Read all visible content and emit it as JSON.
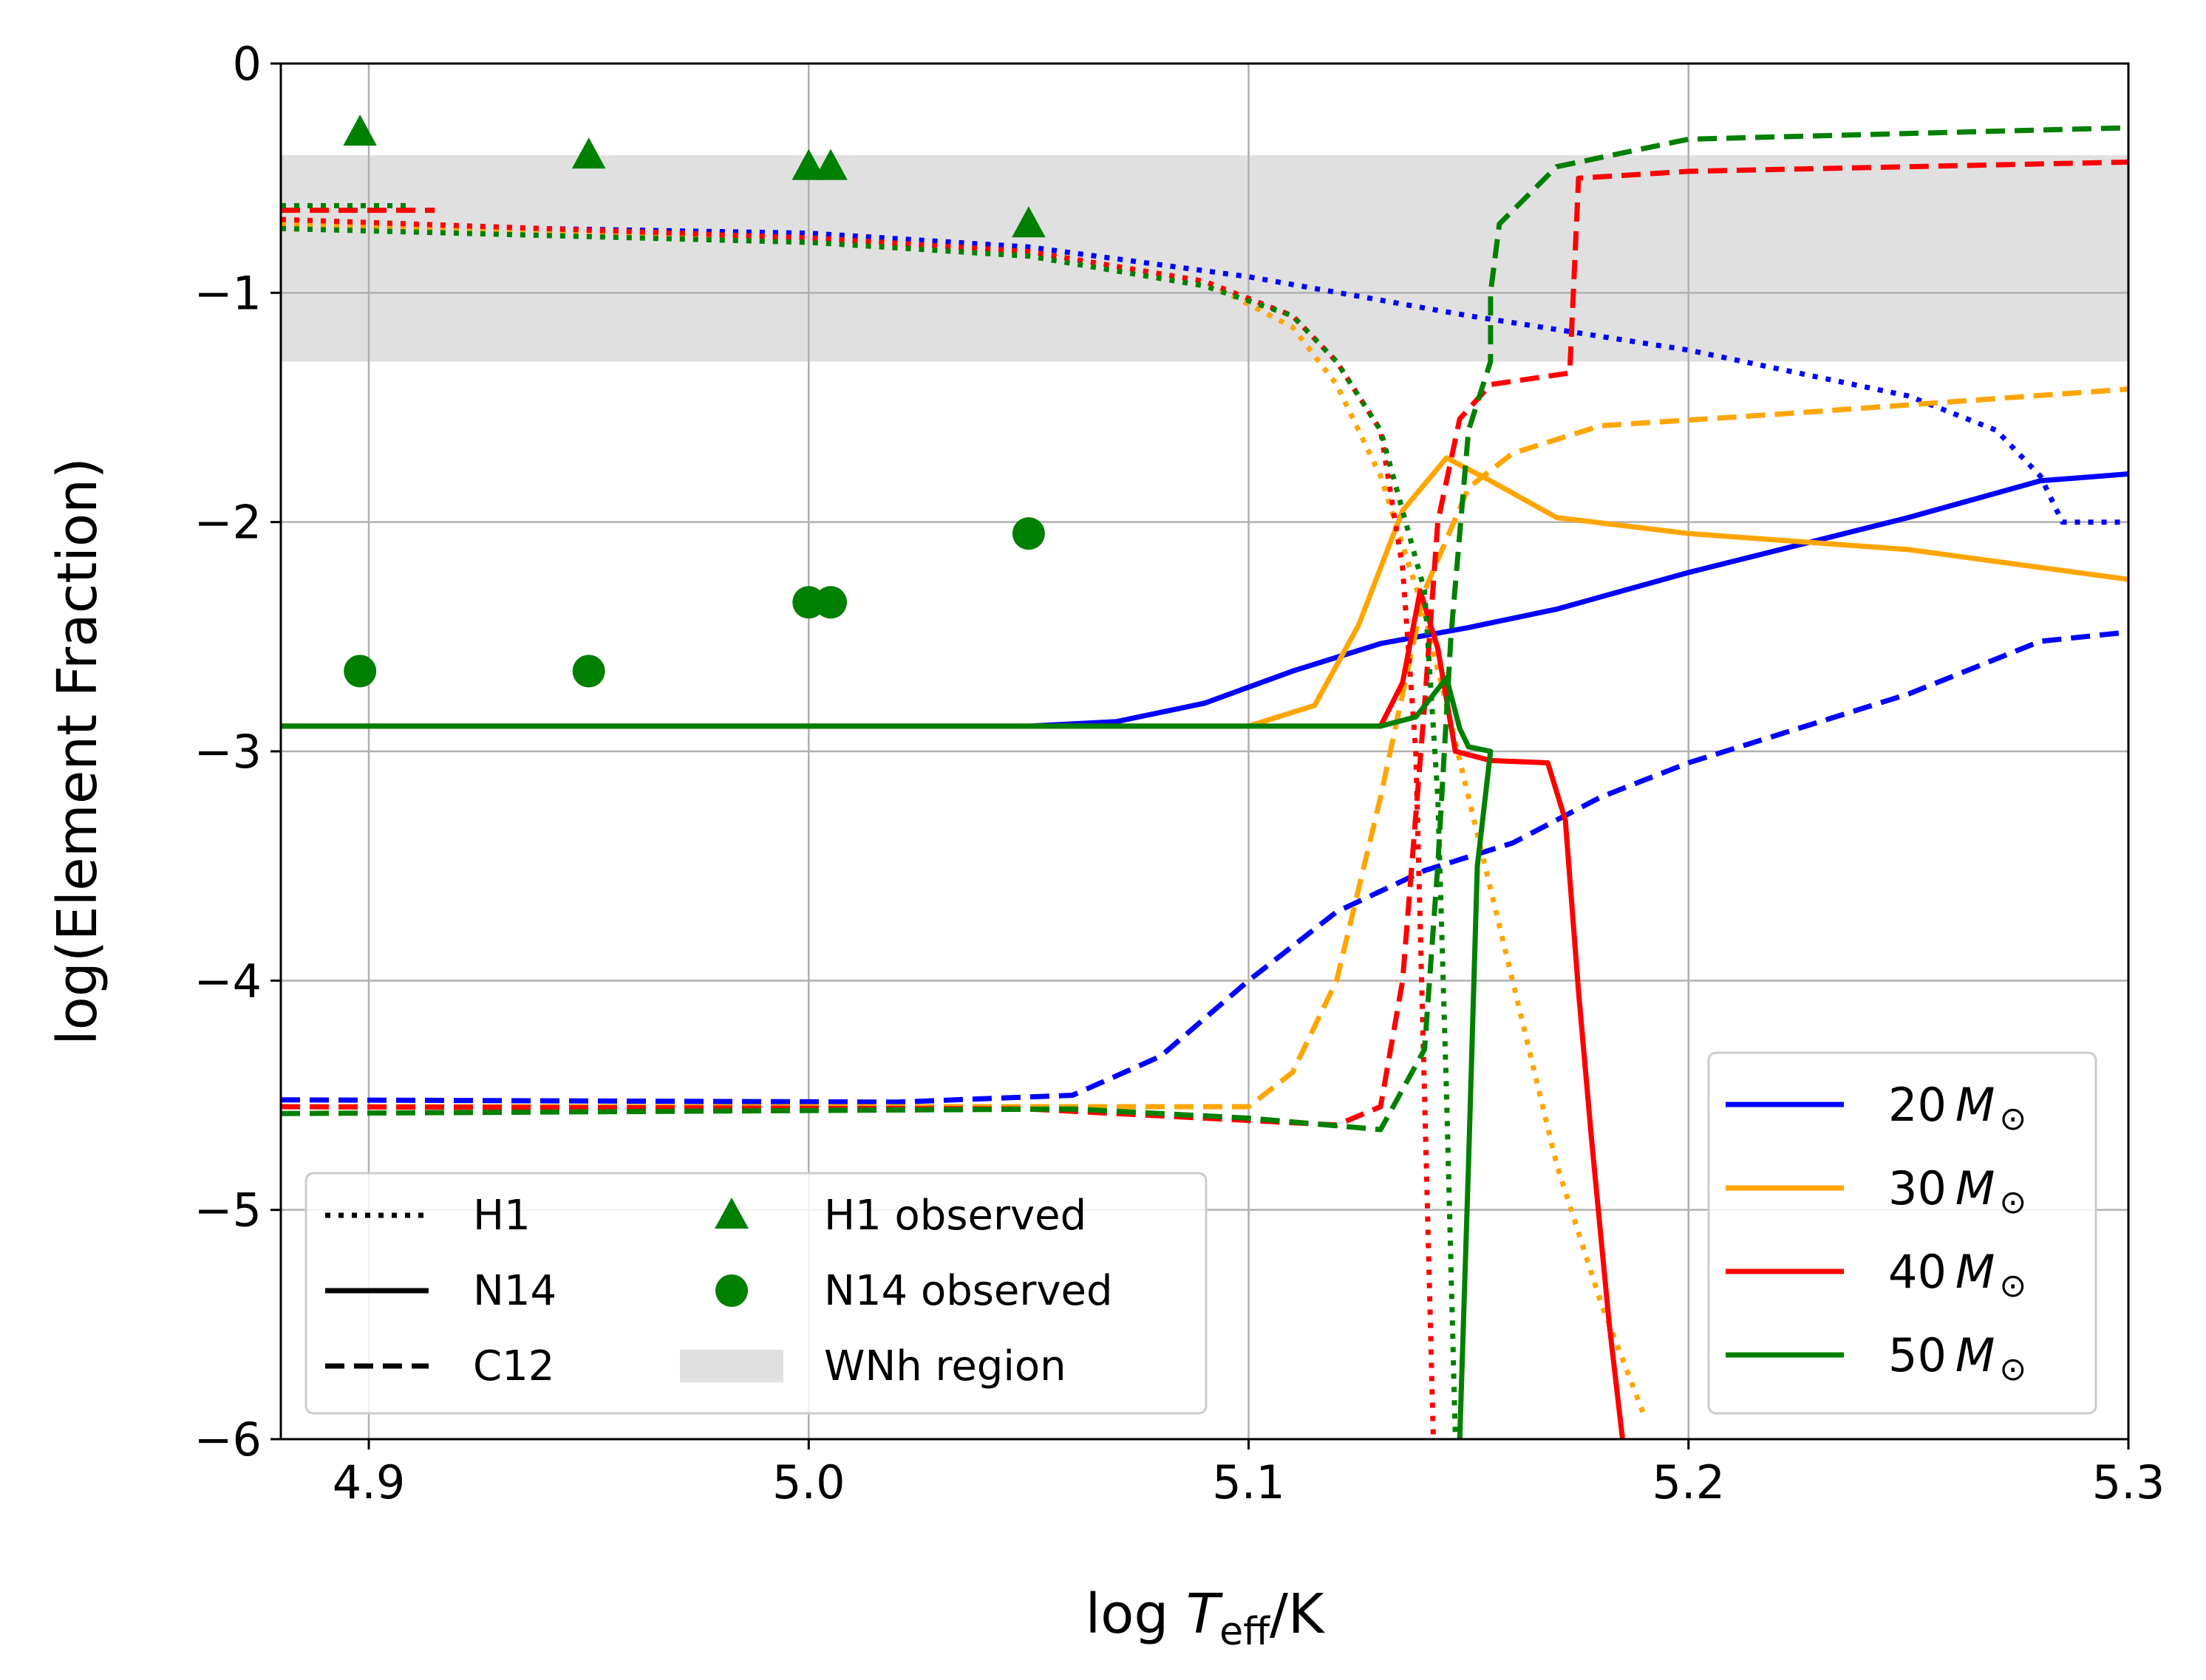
{
  "chart_data": {
    "type": "line",
    "title": "",
    "xlabel": "log T_eff/K",
    "ylabel": "log(Element Fraction)",
    "xlim": [
      4.88,
      5.3
    ],
    "ylim": [
      -6,
      0
    ],
    "xticks": [
      4.9,
      5.0,
      5.1,
      5.2,
      5.3
    ],
    "xtick_labels": [
      "4.9",
      "5.0",
      "5.1",
      "5.2",
      "5.3"
    ],
    "yticks": [
      0,
      -1,
      -2,
      -3,
      -4,
      -5,
      -6
    ],
    "ytick_labels": [
      "0",
      "−1",
      "−2",
      "−3",
      "−4",
      "−5",
      "−6"
    ],
    "grid": true,
    "band": {
      "label": "WNh region",
      "ymin": -1.3,
      "ymax": -0.4,
      "color": "#e0e0e0"
    },
    "mass_legend": {
      "placement": "lower-right",
      "entries": [
        {
          "label": "20",
          "color": "#0000ff"
        },
        {
          "label": "30",
          "color": "#ffa500"
        },
        {
          "label": "40",
          "color": "#ff0000"
        },
        {
          "label": "50",
          "color": "#008000"
        }
      ]
    },
    "style_legend": {
      "placement": "lower-left",
      "entries": [
        {
          "label": "H1",
          "kind": "dotted"
        },
        {
          "label": "N14",
          "kind": "solid"
        },
        {
          "label": "C12",
          "kind": "dashed"
        },
        {
          "label": "H1 observed",
          "kind": "triangle"
        },
        {
          "label": "N14 observed",
          "kind": "circle"
        },
        {
          "label": "WNh region",
          "kind": "band"
        }
      ]
    },
    "series": [
      {
        "mass": "20",
        "element": "H1",
        "color": "#0000ff",
        "dash": "dotted",
        "points": [
          [
            4.88,
            -0.7
          ],
          [
            5.0,
            -0.74
          ],
          [
            5.05,
            -0.8
          ],
          [
            5.1,
            -0.93
          ],
          [
            5.15,
            -1.1
          ],
          [
            5.2,
            -1.25
          ],
          [
            5.25,
            -1.45
          ],
          [
            5.27,
            -1.6
          ],
          [
            5.28,
            -1.8
          ],
          [
            5.285,
            -2.0
          ],
          [
            5.3,
            -2.0
          ]
        ]
      },
      {
        "mass": "20",
        "element": "N14",
        "color": "#0000ff",
        "dash": "solid",
        "points": [
          [
            4.88,
            -2.89
          ],
          [
            5.05,
            -2.89
          ],
          [
            5.07,
            -2.87
          ],
          [
            5.09,
            -2.79
          ],
          [
            5.11,
            -2.65
          ],
          [
            5.13,
            -2.53
          ],
          [
            5.15,
            -2.46
          ],
          [
            5.17,
            -2.38
          ],
          [
            5.2,
            -2.22
          ],
          [
            5.25,
            -1.98
          ],
          [
            5.28,
            -1.82
          ],
          [
            5.3,
            -1.79
          ]
        ]
      },
      {
        "mass": "20",
        "element": "C12",
        "color": "#0000ff",
        "dash": "dashed",
        "points": [
          [
            4.88,
            -4.52
          ],
          [
            5.02,
            -4.53
          ],
          [
            5.06,
            -4.5
          ],
          [
            5.08,
            -4.33
          ],
          [
            5.1,
            -4.0
          ],
          [
            5.12,
            -3.7
          ],
          [
            5.14,
            -3.52
          ],
          [
            5.16,
            -3.4
          ],
          [
            5.18,
            -3.2
          ],
          [
            5.2,
            -3.05
          ],
          [
            5.25,
            -2.75
          ],
          [
            5.28,
            -2.52
          ],
          [
            5.3,
            -2.48
          ]
        ]
      },
      {
        "mass": "30",
        "element": "H1",
        "color": "#ffa500",
        "dash": "dotted",
        "points": [
          [
            4.88,
            -0.7
          ],
          [
            5.0,
            -0.76
          ],
          [
            5.05,
            -0.82
          ],
          [
            5.09,
            -0.95
          ],
          [
            5.11,
            -1.15
          ],
          [
            5.12,
            -1.4
          ],
          [
            5.13,
            -1.8
          ],
          [
            5.14,
            -2.4
          ],
          [
            5.15,
            -3.2
          ],
          [
            5.16,
            -4.0
          ],
          [
            5.17,
            -4.8
          ],
          [
            5.18,
            -5.4
          ],
          [
            5.19,
            -5.9
          ]
        ]
      },
      {
        "mass": "30",
        "element": "N14",
        "color": "#ffa500",
        "dash": "solid",
        "points": [
          [
            4.88,
            -2.89
          ],
          [
            5.1,
            -2.89
          ],
          [
            5.115,
            -2.8
          ],
          [
            5.125,
            -2.45
          ],
          [
            5.135,
            -1.95
          ],
          [
            5.145,
            -1.72
          ],
          [
            5.155,
            -1.82
          ],
          [
            5.17,
            -1.98
          ],
          [
            5.2,
            -2.05
          ],
          [
            5.25,
            -2.12
          ],
          [
            5.3,
            -2.25
          ]
        ]
      },
      {
        "mass": "30",
        "element": "C12",
        "color": "#ffa500",
        "dash": "dashed",
        "points": [
          [
            4.88,
            -4.55
          ],
          [
            5.1,
            -4.55
          ],
          [
            5.11,
            -4.4
          ],
          [
            5.12,
            -4.0
          ],
          [
            5.13,
            -3.2
          ],
          [
            5.14,
            -2.3
          ],
          [
            5.15,
            -1.85
          ],
          [
            5.16,
            -1.7
          ],
          [
            5.18,
            -1.58
          ],
          [
            5.22,
            -1.53
          ],
          [
            5.3,
            -1.42
          ]
        ]
      },
      {
        "mass": "40",
        "element": "H1",
        "color": "#ff0000",
        "dash": "dotted",
        "points": [
          [
            4.88,
            -0.68
          ],
          [
            5.0,
            -0.76
          ],
          [
            5.05,
            -0.82
          ],
          [
            5.09,
            -0.95
          ],
          [
            5.11,
            -1.1
          ],
          [
            5.12,
            -1.3
          ],
          [
            5.13,
            -1.6
          ],
          [
            5.135,
            -2.2
          ],
          [
            5.138,
            -3.0
          ],
          [
            5.14,
            -4.5
          ],
          [
            5.142,
            -6.0
          ]
        ]
      },
      {
        "mass": "40",
        "element": "N14",
        "color": "#ff0000",
        "dash": "solid",
        "points": [
          [
            4.88,
            -2.89
          ],
          [
            5.13,
            -2.89
          ],
          [
            5.135,
            -2.7
          ],
          [
            5.139,
            -2.3
          ],
          [
            5.143,
            -2.55
          ],
          [
            5.147,
            -3.0
          ],
          [
            5.155,
            -3.04
          ],
          [
            5.168,
            -3.05
          ],
          [
            5.172,
            -3.3
          ],
          [
            5.175,
            -4.05
          ],
          [
            5.178,
            -4.7
          ],
          [
            5.182,
            -5.5
          ],
          [
            5.185,
            -6.0
          ]
        ]
      },
      {
        "mass": "40",
        "element": "C12",
        "color": "#ff0000",
        "dash": "dashed",
        "points": [
          [
            4.88,
            -4.55
          ],
          [
            5.05,
            -4.56
          ],
          [
            5.12,
            -4.63
          ],
          [
            5.13,
            -4.55
          ],
          [
            5.135,
            -4.0
          ],
          [
            5.14,
            -2.8
          ],
          [
            5.143,
            -2.0
          ],
          [
            5.148,
            -1.55
          ],
          [
            5.155,
            -1.4
          ],
          [
            5.173,
            -1.35
          ],
          [
            5.175,
            -0.5
          ],
          [
            5.2,
            -0.47
          ],
          [
            5.3,
            -0.43
          ]
        ]
      },
      {
        "mass": "40",
        "element": "C12",
        "color": "#ff0000",
        "dash": "dashed",
        "points": [
          [
            4.88,
            -0.64
          ],
          [
            4.915,
            -0.64
          ]
        ]
      },
      {
        "mass": "50",
        "element": "H1",
        "color": "#008000",
        "dash": "dotted",
        "points": [
          [
            4.88,
            -0.72
          ],
          [
            5.0,
            -0.78
          ],
          [
            5.05,
            -0.84
          ],
          [
            5.09,
            -0.97
          ],
          [
            5.11,
            -1.1
          ],
          [
            5.12,
            -1.3
          ],
          [
            5.13,
            -1.6
          ],
          [
            5.14,
            -2.3
          ],
          [
            5.143,
            -3.2
          ],
          [
            5.145,
            -4.5
          ],
          [
            5.147,
            -6.0
          ]
        ]
      },
      {
        "mass": "50",
        "element": "H1",
        "color": "#008000",
        "dash": "dotted",
        "points": [
          [
            4.88,
            -0.62
          ],
          [
            4.91,
            -0.62
          ]
        ]
      },
      {
        "mass": "50",
        "element": "N14",
        "color": "#008000",
        "dash": "solid",
        "points": [
          [
            4.88,
            -2.89
          ],
          [
            5.13,
            -2.89
          ],
          [
            5.138,
            -2.85
          ],
          [
            5.145,
            -2.68
          ],
          [
            5.148,
            -2.9
          ],
          [
            5.15,
            -2.98
          ],
          [
            5.155,
            -3.0
          ],
          [
            5.152,
            -3.5
          ],
          [
            5.15,
            -4.8
          ],
          [
            5.148,
            -6.0
          ]
        ]
      },
      {
        "mass": "50",
        "element": "C12",
        "color": "#008000",
        "dash": "dashed",
        "points": [
          [
            4.88,
            -4.58
          ],
          [
            5.06,
            -4.56
          ],
          [
            5.1,
            -4.6
          ],
          [
            5.13,
            -4.65
          ],
          [
            5.14,
            -4.3
          ],
          [
            5.143,
            -3.5
          ],
          [
            5.146,
            -2.5
          ],
          [
            5.15,
            -1.6
          ],
          [
            5.155,
            -1.3
          ],
          [
            5.155,
            -1.0
          ],
          [
            5.157,
            -0.7
          ],
          [
            5.17,
            -0.45
          ],
          [
            5.2,
            -0.33
          ],
          [
            5.3,
            -0.28
          ]
        ]
      }
    ],
    "observed_h1": {
      "color": "#008000",
      "marker": "triangle",
      "points": [
        [
          4.898,
          -0.3
        ],
        [
          4.95,
          -0.4
        ],
        [
          5.0,
          -0.45
        ],
        [
          5.005,
          -0.45
        ],
        [
          5.05,
          -0.7
        ]
      ]
    },
    "observed_n14": {
      "color": "#008000",
      "marker": "circle",
      "points": [
        [
          4.898,
          -2.65
        ],
        [
          4.95,
          -2.65
        ],
        [
          5.0,
          -2.35
        ],
        [
          5.005,
          -2.35
        ],
        [
          5.05,
          -2.05
        ]
      ]
    }
  }
}
